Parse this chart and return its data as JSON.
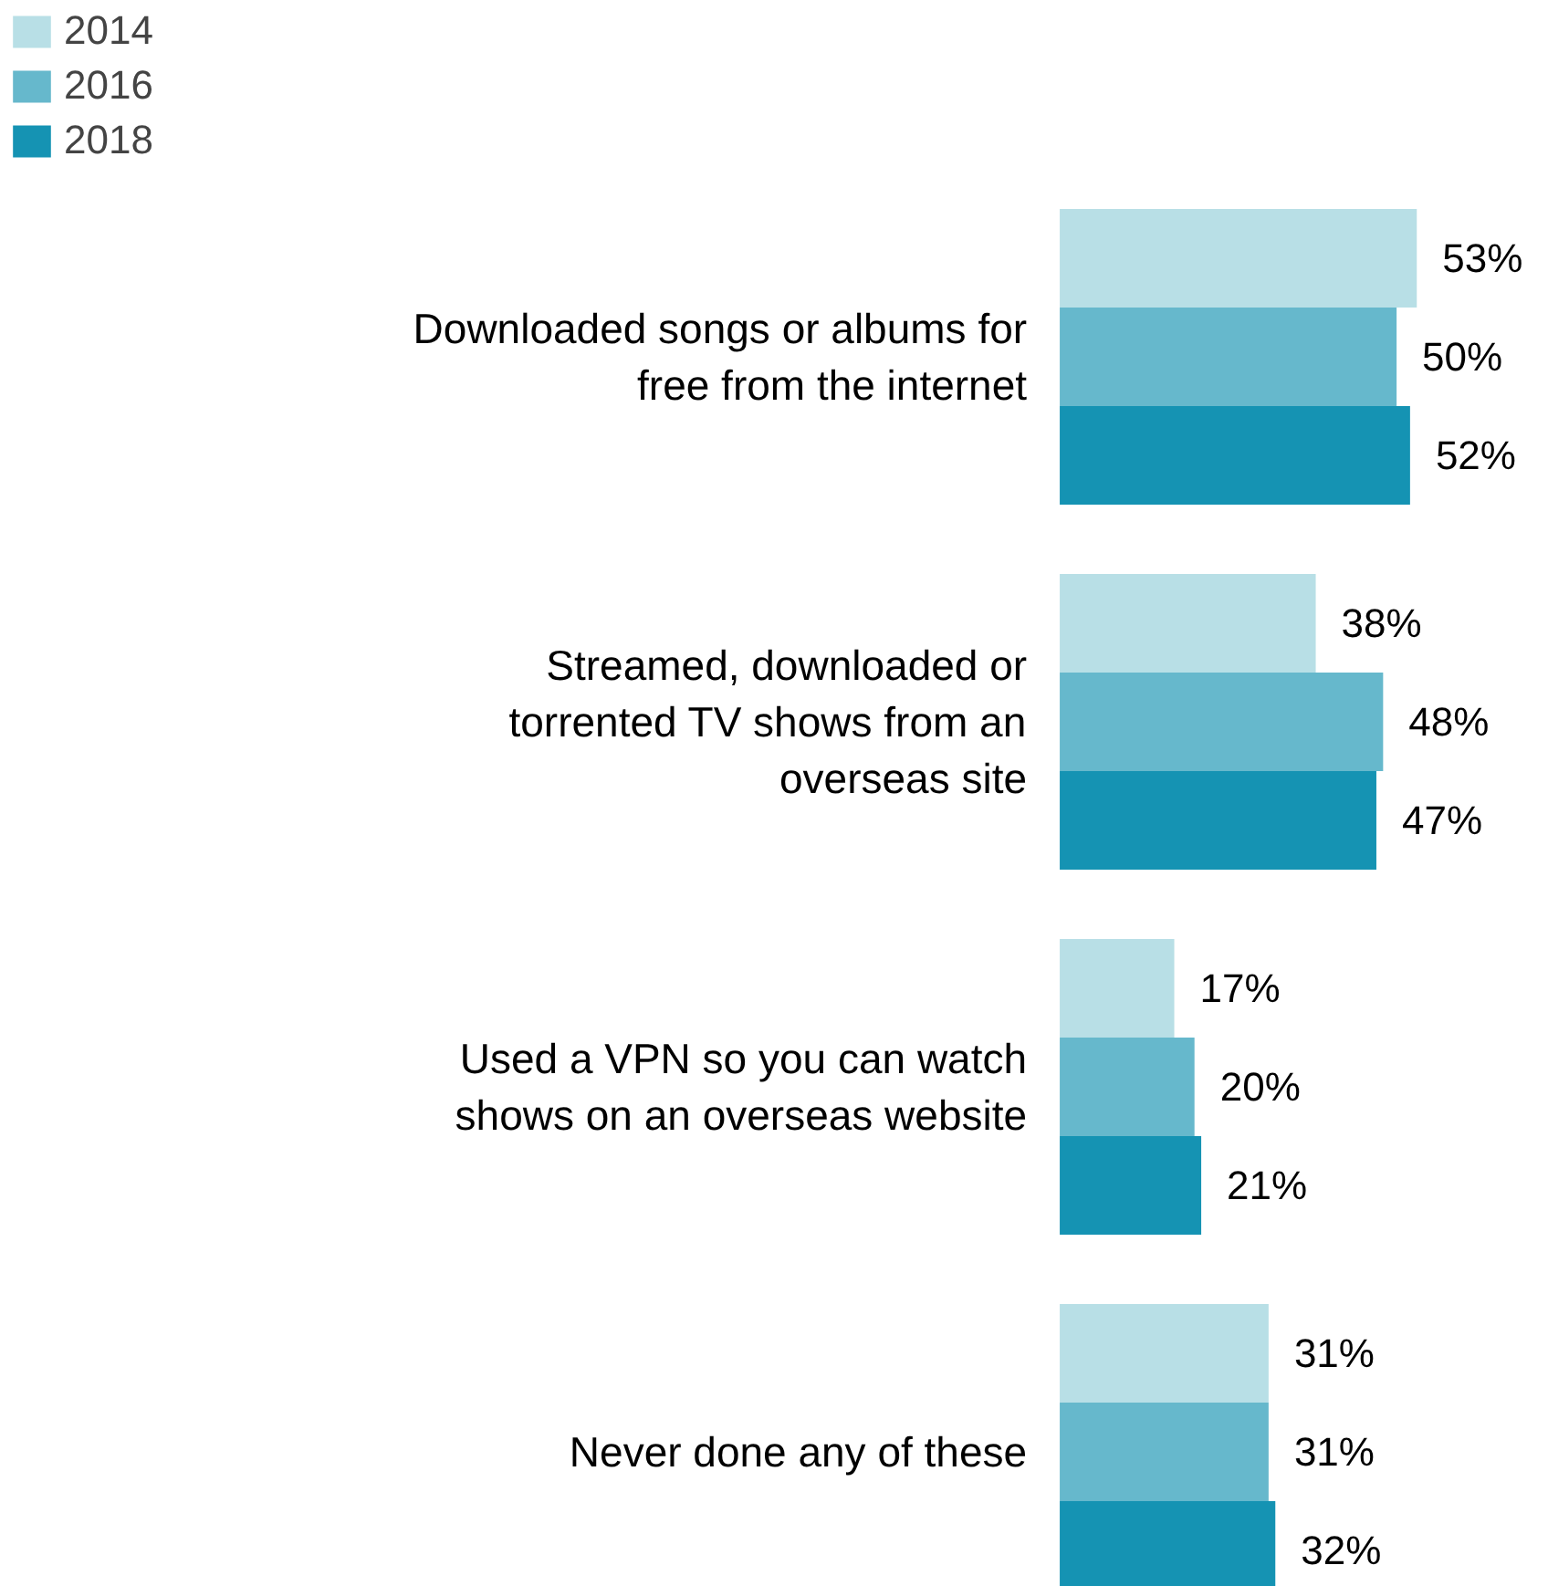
{
  "chart_data": {
    "type": "bar",
    "orientation": "horizontal",
    "categories": [
      "Downloaded songs or albums for free from the internet",
      "Streamed, downloaded or torrented TV shows from an overseas site",
      "Used a VPN so you can watch shows on an overseas website",
      "Never done any of these"
    ],
    "series": [
      {
        "name": "2014",
        "color": "#b8dfe6",
        "values": [
          53,
          38,
          17,
          31
        ],
        "value_labels": [
          "53%",
          "38%",
          "17%",
          "31%"
        ]
      },
      {
        "name": "2016",
        "color": "#66b8cc",
        "values": [
          50,
          48,
          20,
          31
        ],
        "value_labels": [
          "50%",
          "48%",
          "20%",
          "31%"
        ]
      },
      {
        "name": "2018",
        "color": "#1593b3",
        "values": [
          52,
          47,
          21,
          32
        ],
        "value_labels": [
          "52%",
          "47%",
          "21%",
          "32%"
        ]
      }
    ],
    "legend": "top left",
    "grid": false
  }
}
